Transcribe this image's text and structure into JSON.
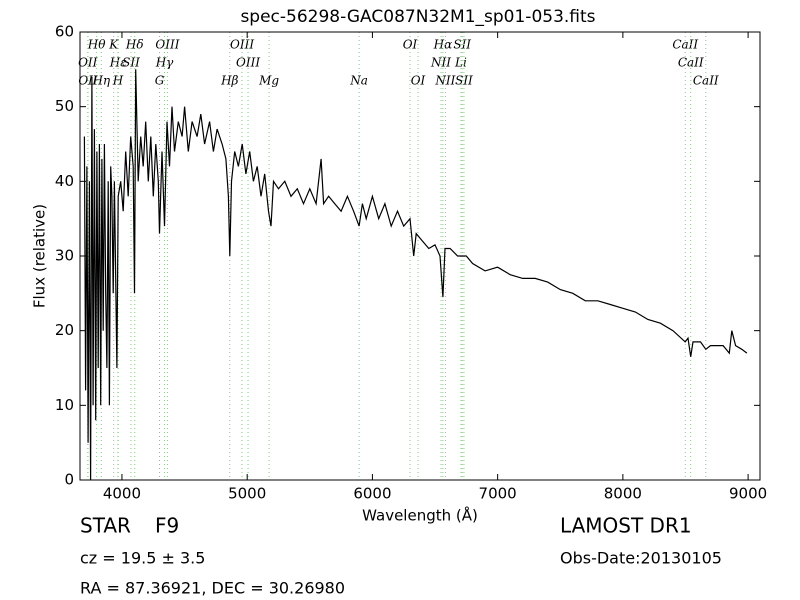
{
  "chart_data": {
    "type": "line",
    "title": "spec-56298-GAC087N32M1_sp01-053.fits",
    "xlabel": "Wavelength (Å)",
    "ylabel": "Flux (relative)",
    "xlim": [
      3665,
      9095
    ],
    "ylim": [
      0,
      60
    ],
    "xticks": [
      4000,
      5000,
      6000,
      7000,
      8000,
      9000
    ],
    "yticks": [
      0,
      10,
      20,
      30,
      40,
      50,
      60
    ],
    "color": "#000000",
    "line_color": "#7fcc7f",
    "x": [
      3700,
      3710,
      3720,
      3730,
      3740,
      3750,
      3760,
      3770,
      3780,
      3790,
      3800,
      3810,
      3820,
      3830,
      3840,
      3850,
      3860,
      3870,
      3880,
      3890,
      3900,
      3910,
      3920,
      3930,
      3940,
      3960,
      3970,
      3990,
      4010,
      4030,
      4050,
      4070,
      4090,
      4100,
      4110,
      4130,
      4150,
      4170,
      4190,
      4210,
      4230,
      4250,
      4270,
      4290,
      4300,
      4320,
      4340,
      4360,
      4380,
      4400,
      4420,
      4450,
      4480,
      4500,
      4530,
      4560,
      4600,
      4630,
      4660,
      4700,
      4730,
      4760,
      4800,
      4830,
      4850,
      4861,
      4875,
      4900,
      4930,
      4960,
      4990,
      5020,
      5050,
      5080,
      5110,
      5140,
      5170,
      5190,
      5210,
      5250,
      5300,
      5350,
      5400,
      5450,
      5500,
      5550,
      5590,
      5610,
      5650,
      5700,
      5750,
      5800,
      5850,
      5894,
      5920,
      5950,
      6000,
      6050,
      6100,
      6150,
      6200,
      6250,
      6300,
      6330,
      6350,
      6400,
      6450,
      6500,
      6540,
      6563,
      6580,
      6620,
      6680,
      6750,
      6800,
      6900,
      7000,
      7100,
      7200,
      7300,
      7400,
      7500,
      7600,
      7700,
      7800,
      7900,
      8000,
      8100,
      8200,
      8300,
      8400,
      8498,
      8520,
      8542,
      8560,
      8620,
      8662,
      8700,
      8800,
      8850,
      8870,
      8900,
      8950,
      8990
    ],
    "values": [
      46,
      12,
      42,
      5,
      40,
      0,
      54,
      10,
      47,
      8,
      44,
      15,
      45,
      10,
      43,
      20,
      45,
      25,
      15,
      40,
      10,
      42,
      38,
      25,
      40,
      15,
      38,
      40,
      36,
      44,
      38,
      46,
      42,
      25,
      55,
      40,
      46,
      42,
      48,
      40,
      46,
      38,
      45,
      40,
      33,
      44,
      34,
      48,
      42,
      50,
      44,
      48,
      46,
      50,
      44,
      48,
      46,
      49,
      45,
      48,
      44,
      47,
      45,
      43,
      38,
      30,
      40,
      44,
      42,
      45,
      41,
      44,
      40,
      42,
      38,
      41,
      36,
      34,
      40,
      39,
      40,
      38,
      39,
      37,
      39,
      37,
      43,
      37,
      38,
      37,
      36,
      38,
      36,
      34,
      37,
      35,
      38,
      35,
      37,
      34,
      36,
      34,
      35,
      30,
      33,
      32,
      31,
      31.5,
      30,
      24.5,
      31,
      31,
      30,
      30,
      29,
      28,
      28.5,
      27.5,
      27,
      27,
      26.5,
      25.5,
      25,
      24,
      24,
      23.5,
      23,
      22.5,
      21.5,
      21,
      20,
      18.5,
      19,
      16.5,
      18.5,
      18.5,
      17.5,
      18,
      18,
      17,
      20,
      18,
      17.5,
      17
    ],
    "line_rows": [
      [
        {
          "label": "Hθ",
          "wavelength": 3798
        },
        {
          "label": "K",
          "wavelength": 3934
        },
        {
          "label": "Hδ",
          "wavelength": 4102
        },
        {
          "label": "OIII",
          "wavelength": 4363
        },
        {
          "label": "OIII",
          "wavelength": 4959
        },
        {
          "label": "OI",
          "wavelength": 6300
        },
        {
          "label": "Hα",
          "wavelength": 6563
        },
        {
          "label": "SII",
          "wavelength": 6717
        },
        {
          "label": "CaII",
          "wavelength": 8498
        }
      ],
      [
        {
          "label": "OII",
          "wavelength": 3727
        },
        {
          "label": "Hε",
          "wavelength": 3970
        },
        {
          "label": "SII",
          "wavelength": 4072
        },
        {
          "label": "Hγ",
          "wavelength": 4340
        },
        {
          "label": "OIII",
          "wavelength": 5007
        },
        {
          "label": "NII",
          "wavelength": 6548
        },
        {
          "label": "Li",
          "wavelength": 6707
        },
        {
          "label": "CaII",
          "wavelength": 8542
        }
      ],
      [
        {
          "label": "OII",
          "wavelength": 3729
        },
        {
          "label": "Hη",
          "wavelength": 3835
        },
        {
          "label": "H",
          "wavelength": 3968
        },
        {
          "label": "G",
          "wavelength": 4300
        },
        {
          "label": "Hβ",
          "wavelength": 4861
        },
        {
          "label": "Mg",
          "wavelength": 5175
        },
        {
          "label": "Na",
          "wavelength": 5894
        },
        {
          "label": "OI",
          "wavelength": 6364
        },
        {
          "label": "NII",
          "wavelength": 6583
        },
        {
          "label": "SII",
          "wavelength": 6731
        },
        {
          "label": "CaII",
          "wavelength": 8662
        }
      ]
    ]
  },
  "info": {
    "class": "STAR",
    "subclass": "F9",
    "cz": "cz = 19.5 ± 3.5",
    "survey": "LAMOST DR1",
    "obs_date": "Obs-Date:20130105",
    "coords": "RA = 87.36921, DEC = 30.26980"
  }
}
